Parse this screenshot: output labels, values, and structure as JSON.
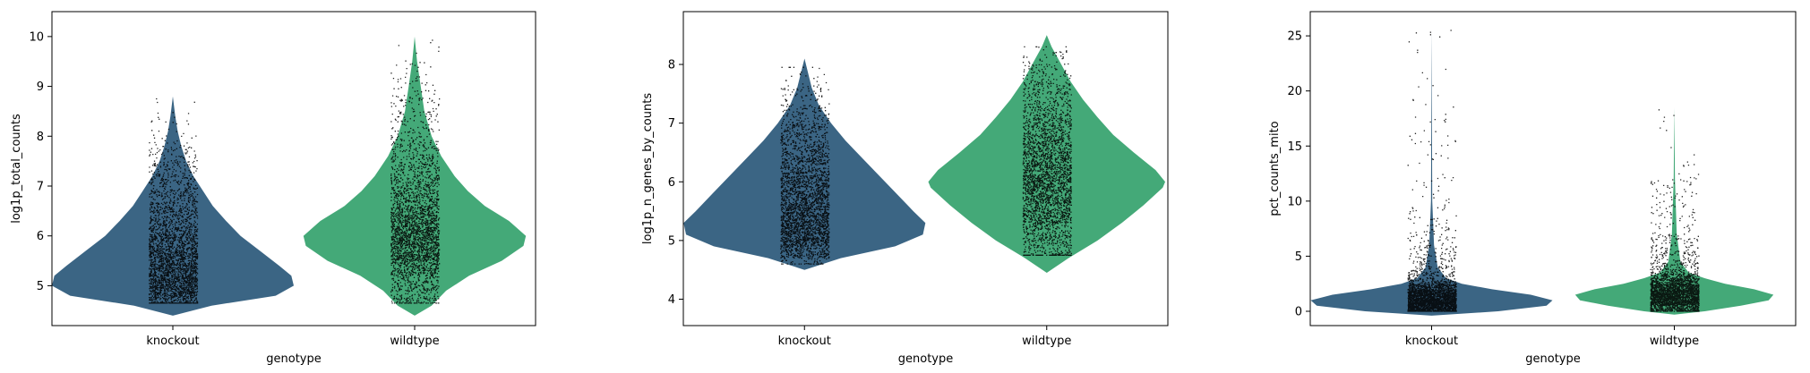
{
  "colors": {
    "knockout": "#3b6584",
    "wildtype": "#44a978",
    "points": "#000000"
  },
  "chart_data": [
    {
      "type": "violin",
      "xlabel": "genotype",
      "ylabel": "log1p_total_counts",
      "ylim": [
        4.2,
        10.5
      ],
      "yticks": [
        5,
        6,
        7,
        8,
        9,
        10
      ],
      "ytick_labels": [
        "5",
        "6",
        "7",
        "8",
        "9",
        "10"
      ],
      "categories": [
        "knockout",
        "wildtype"
      ],
      "series": [
        {
          "name": "knockout",
          "min": 4.4,
          "max": 8.8,
          "jitter_min": 4.65,
          "jitter_max": 8.75,
          "density": [
            [
              4.4,
              0.0
            ],
            [
              4.6,
              0.32
            ],
            [
              4.8,
              0.85
            ],
            [
              5.0,
              1.0
            ],
            [
              5.2,
              0.98
            ],
            [
              5.4,
              0.88
            ],
            [
              5.7,
              0.72
            ],
            [
              6.0,
              0.56
            ],
            [
              6.3,
              0.44
            ],
            [
              6.6,
              0.33
            ],
            [
              6.9,
              0.25
            ],
            [
              7.2,
              0.17
            ],
            [
              7.5,
              0.11
            ],
            [
              7.8,
              0.07
            ],
            [
              8.1,
              0.04
            ],
            [
              8.4,
              0.02
            ],
            [
              8.8,
              0.0
            ]
          ]
        },
        {
          "name": "wildtype",
          "min": 4.4,
          "max": 10.0,
          "jitter_min": 4.65,
          "jitter_max": 9.95,
          "density": [
            [
              4.4,
              0.0
            ],
            [
              4.6,
              0.14
            ],
            [
              4.9,
              0.26
            ],
            [
              5.2,
              0.45
            ],
            [
              5.5,
              0.72
            ],
            [
              5.8,
              0.9
            ],
            [
              6.0,
              0.92
            ],
            [
              6.3,
              0.78
            ],
            [
              6.6,
              0.58
            ],
            [
              6.9,
              0.44
            ],
            [
              7.2,
              0.33
            ],
            [
              7.6,
              0.22
            ],
            [
              8.0,
              0.14
            ],
            [
              8.5,
              0.08
            ],
            [
              9.0,
              0.05
            ],
            [
              9.5,
              0.02
            ],
            [
              10.0,
              0.0
            ]
          ]
        }
      ]
    },
    {
      "type": "violin",
      "xlabel": "genotype",
      "ylabel": "log1p_n_genes_by_counts",
      "ylim": [
        3.55,
        8.9
      ],
      "yticks": [
        4,
        5,
        6,
        7,
        8
      ],
      "ytick_labels": [
        "4",
        "5",
        "6",
        "7",
        "8"
      ],
      "categories": [
        "knockout",
        "wildtype"
      ],
      "series": [
        {
          "name": "knockout",
          "min": 4.5,
          "max": 8.1,
          "jitter_min": 4.6,
          "jitter_max": 7.95,
          "density": [
            [
              4.5,
              0.0
            ],
            [
              4.7,
              0.3
            ],
            [
              4.9,
              0.75
            ],
            [
              5.1,
              0.98
            ],
            [
              5.3,
              1.0
            ],
            [
              5.5,
              0.9
            ],
            [
              5.8,
              0.76
            ],
            [
              6.1,
              0.62
            ],
            [
              6.4,
              0.48
            ],
            [
              6.7,
              0.34
            ],
            [
              7.0,
              0.22
            ],
            [
              7.3,
              0.12
            ],
            [
              7.6,
              0.06
            ],
            [
              8.1,
              0.0
            ]
          ]
        },
        {
          "name": "wildtype",
          "min": 4.45,
          "max": 8.5,
          "jitter_min": 4.75,
          "jitter_max": 8.3,
          "density": [
            [
              4.45,
              0.0
            ],
            [
              4.7,
              0.18
            ],
            [
              5.0,
              0.42
            ],
            [
              5.3,
              0.62
            ],
            [
              5.6,
              0.8
            ],
            [
              5.9,
              0.96
            ],
            [
              6.0,
              0.98
            ],
            [
              6.2,
              0.9
            ],
            [
              6.5,
              0.72
            ],
            [
              6.8,
              0.55
            ],
            [
              7.1,
              0.42
            ],
            [
              7.4,
              0.3
            ],
            [
              7.7,
              0.2
            ],
            [
              8.0,
              0.12
            ],
            [
              8.3,
              0.04
            ],
            [
              8.5,
              0.0
            ]
          ]
        }
      ]
    },
    {
      "type": "violin",
      "xlabel": "genotype",
      "ylabel": "pct_counts_mito",
      "ylim": [
        -1.3,
        27.2
      ],
      "yticks": [
        0,
        5,
        10,
        15,
        20,
        25
      ],
      "ytick_labels": [
        "0",
        "5",
        "10",
        "15",
        "20",
        "25"
      ],
      "categories": [
        "knockout",
        "wildtype"
      ],
      "series": [
        {
          "name": "knockout",
          "min": -0.4,
          "max": 25.5,
          "jitter_min": 0.0,
          "jitter_max": 25.5,
          "density": [
            [
              -0.4,
              0.0
            ],
            [
              0.0,
              0.55
            ],
            [
              0.5,
              0.95
            ],
            [
              1.0,
              1.0
            ],
            [
              1.5,
              0.82
            ],
            [
              2.0,
              0.5
            ],
            [
              2.5,
              0.25
            ],
            [
              3.0,
              0.12
            ],
            [
              4.0,
              0.05
            ],
            [
              6.0,
              0.02
            ],
            [
              10.0,
              0.005
            ],
            [
              25.5,
              0.0
            ]
          ]
        },
        {
          "name": "wildtype",
          "min": -0.3,
          "max": 18.5,
          "jitter_min": 0.0,
          "jitter_max": 18.3,
          "density": [
            [
              -0.3,
              0.0
            ],
            [
              0.0,
              0.25
            ],
            [
              0.5,
              0.55
            ],
            [
              1.0,
              0.78
            ],
            [
              1.5,
              0.82
            ],
            [
              2.0,
              0.66
            ],
            [
              2.5,
              0.42
            ],
            [
              3.0,
              0.25
            ],
            [
              3.5,
              0.12
            ],
            [
              4.5,
              0.05
            ],
            [
              7.0,
              0.02
            ],
            [
              12.0,
              0.005
            ],
            [
              18.5,
              0.0
            ]
          ]
        }
      ]
    }
  ]
}
